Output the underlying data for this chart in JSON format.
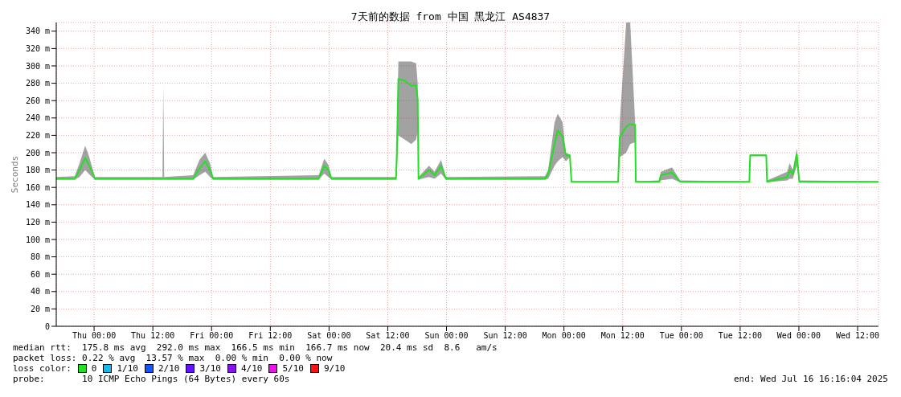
{
  "chart_data": {
    "type": "line",
    "title": "7天前的数据 from 中国 黑龙江 AS4837",
    "ylabel": "Seconds",
    "x": [
      "2025-07-09T16:16",
      "2025-07-09T20:03",
      "2025-07-09T21:02",
      "2025-07-09T22:11",
      "2025-07-09T23:01",
      "2025-07-10T00:10",
      "2025-07-10T12:30",
      "2025-07-10T13:59",
      "2025-07-10T14:08",
      "2025-07-10T14:19",
      "2025-07-10T20:14",
      "2025-07-10T21:33",
      "2025-07-10T22:42",
      "2025-07-10T23:41",
      "2025-07-11T00:20",
      "2025-07-11T21:53",
      "2025-07-11T23:02",
      "2025-07-11T23:52",
      "2025-07-12T00:31",
      "2025-07-12T13:41",
      "2025-07-12T13:50",
      "2025-07-12T14:10",
      "2025-07-12T15:29",
      "2025-07-12T16:48",
      "2025-07-12T17:47",
      "2025-07-12T18:07",
      "2025-07-12T18:17",
      "2025-07-12T20:25",
      "2025-07-12T21:34",
      "2025-07-12T22:53",
      "2025-07-12T23:53",
      "2025-07-13T20:07",
      "2025-07-13T20:46",
      "2025-07-13T22:05",
      "2025-07-13T22:44",
      "2025-07-13T23:43",
      "2025-07-14T00:23",
      "2025-07-14T01:12",
      "2025-07-14T01:32",
      "2025-07-14T11:04",
      "2025-07-14T11:24",
      "2025-07-14T12:43",
      "2025-07-14T13:32",
      "2025-07-14T14:32",
      "2025-07-14T14:41",
      "2025-07-14T19:28",
      "2025-07-14T19:47",
      "2025-07-14T22:05",
      "2025-07-14T23:44",
      "2025-07-15T13:53",
      "2025-07-15T14:03",
      "2025-07-15T17:20",
      "2025-07-15T17:30",
      "2025-07-15T21:37",
      "2025-07-15T22:07",
      "2025-07-15T22:46",
      "2025-07-15T23:35",
      "2025-07-16T00:05",
      "2025-07-16T16:16"
    ],
    "series": [
      {
        "color": "#22e022",
        "values": [
          170,
          170,
          180,
          194,
          185,
          170,
          170,
          170,
          170,
          170,
          170,
          182,
          190,
          180,
          170,
          170,
          185,
          180,
          170,
          170,
          195,
          285,
          283,
          277,
          278,
          262,
          170,
          180,
          174,
          185,
          170,
          170,
          175,
          210,
          226,
          218,
          197,
          197,
          166.5,
          166.5,
          218,
          230,
          233,
          232,
          166.5,
          166.5,
          174,
          177,
          166.5,
          166.5,
          197,
          197,
          166.5,
          172,
          180,
          175,
          198,
          166.5,
          166.5
        ],
        "lower": [
          169,
          169,
          172,
          180,
          175,
          169,
          169,
          169,
          169,
          169,
          169,
          174,
          178,
          172,
          169,
          169,
          176,
          172,
          169,
          169,
          175,
          220,
          215,
          210,
          215,
          225,
          169,
          172,
          170,
          176,
          169,
          169,
          170,
          185,
          190,
          195,
          190,
          195,
          166,
          166,
          195,
          200,
          210,
          212,
          166,
          166,
          168,
          170,
          166,
          166,
          196,
          196,
          166,
          168,
          170,
          170,
          185,
          166,
          166
        ],
        "upper": [
          172,
          173,
          188,
          208,
          195,
          172,
          172,
          172,
          277,
          172,
          174,
          192,
          200,
          188,
          172,
          174,
          193,
          186,
          172,
          172,
          210,
          305,
          305,
          305,
          303,
          280,
          172,
          185,
          178,
          192,
          172,
          173,
          180,
          235,
          245,
          235,
          200,
          198,
          167,
          167,
          235,
          350,
          350,
          236,
          167,
          168,
          178,
          183,
          168,
          167,
          198,
          198,
          168,
          178,
          188,
          180,
          205,
          168,
          167
        ]
      }
    ],
    "xlim": [
      "2025-07-09T16:16",
      "2025-07-16T16:16"
    ],
    "xticks": [
      {
        "value": "2025-07-10T00:00",
        "label": "Thu 00:00"
      },
      {
        "value": "2025-07-10T12:00",
        "label": "Thu 12:00"
      },
      {
        "value": "2025-07-11T00:00",
        "label": "Fri 00:00"
      },
      {
        "value": "2025-07-11T12:00",
        "label": "Fri 12:00"
      },
      {
        "value": "2025-07-12T00:00",
        "label": "Sat 00:00"
      },
      {
        "value": "2025-07-12T12:00",
        "label": "Sat 12:00"
      },
      {
        "value": "2025-07-13T00:00",
        "label": "Sun 00:00"
      },
      {
        "value": "2025-07-13T12:00",
        "label": "Sun 12:00"
      },
      {
        "value": "2025-07-14T00:00",
        "label": "Mon 00:00"
      },
      {
        "value": "2025-07-14T12:00",
        "label": "Mon 12:00"
      },
      {
        "value": "2025-07-15T00:00",
        "label": "Tue 00:00"
      },
      {
        "value": "2025-07-15T12:00",
        "label": "Tue 12:00"
      },
      {
        "value": "2025-07-16T00:00",
        "label": "Wed 00:00"
      },
      {
        "value": "2025-07-16T12:00",
        "label": "Wed 12:00"
      }
    ],
    "ylim": [
      0,
      350
    ],
    "yticks": [
      0,
      {
        "value": 20,
        "label": "20 m"
      },
      {
        "value": 40,
        "label": "40 m"
      },
      {
        "value": 60,
        "label": "60 m"
      },
      {
        "value": 80,
        "label": "80 m"
      },
      {
        "value": 100,
        "label": "100 m"
      },
      {
        "value": 120,
        "label": "120 m"
      },
      {
        "value": 140,
        "label": "140 m"
      },
      {
        "value": 160,
        "label": "160 m"
      },
      {
        "value": 180,
        "label": "180 m"
      },
      {
        "value": 200,
        "label": "200 m"
      },
      {
        "value": 220,
        "label": "220 m"
      },
      {
        "value": 240,
        "label": "240 m"
      },
      {
        "value": 260,
        "label": "260 m"
      },
      {
        "value": 280,
        "label": "280 m"
      },
      {
        "value": 300,
        "label": "300 m"
      },
      {
        "value": 320,
        "label": "320 m"
      },
      {
        "value": 340,
        "label": "340 m"
      }
    ],
    "grid": true,
    "annotations": [
      "median rtt:  175.8 ms avg  292.0 ms max  166.5 ms min  166.7 ms now  20.4 ms sd  8.6   am/s",
      "packet loss: 0.22 % avg  13.57 % max  0.00 % min  0.00 % now",
      "loss color:",
      "0",
      "1/10",
      "2/10",
      "3/10",
      "4/10",
      "5/10",
      "9/10",
      "probe:       10 ICMP Echo Pings (64 Bytes) every 60s",
      "end: Wed Jul 16 16:16:04 2025"
    ]
  }
}
